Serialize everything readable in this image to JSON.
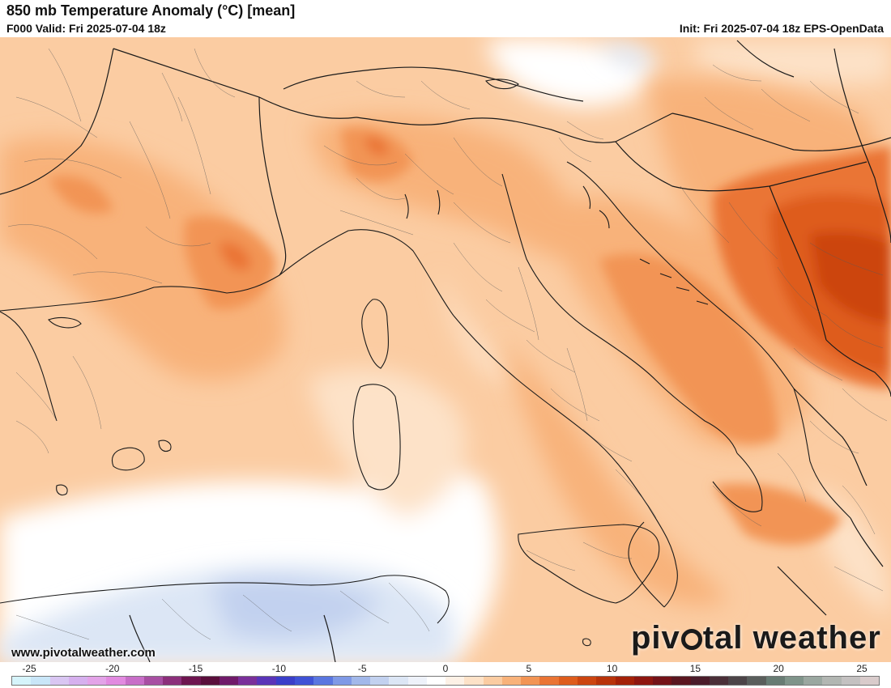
{
  "header": {
    "title": "850 mb Temperature Anomaly (°C) [mean]",
    "valid": "F000 Valid: Fri 2025-07-04 18z",
    "init": "Init: Fri 2025-07-04 18z EPS-OpenData"
  },
  "footer": {
    "website": "www.pivotalweather.com",
    "logo_left": "piv",
    "logo_right": "tal weather"
  },
  "colorbar": {
    "ticks": [
      "-25",
      "-20",
      "-15",
      "-10",
      "-5",
      "0",
      "5",
      "10",
      "15",
      "20",
      "25"
    ],
    "colors": [
      "#d6f4fb",
      "#c9e6f8",
      "#d9c6f2",
      "#d6b0ee",
      "#e3a3e8",
      "#e28ae0",
      "#c86ec8",
      "#a84fa3",
      "#8c2f7b",
      "#6e1550",
      "#5a0e3b",
      "#701a6a",
      "#7a2f9a",
      "#5a34b8",
      "#3a3ec9",
      "#3f52d6",
      "#5a76e0",
      "#7f99e6",
      "#a2b8ea",
      "#c2d1ef",
      "#dce6f5",
      "#eef2fa",
      "#ffffff",
      "#fdf1e6",
      "#fde2c8",
      "#fbcca2",
      "#f8b27a",
      "#f29454",
      "#ea7434",
      "#de5c1c",
      "#cc4510",
      "#b8330a",
      "#a42108",
      "#8e1610",
      "#741218",
      "#5a1620",
      "#4a1c2a",
      "#4a2f38",
      "#4c4448",
      "#5a5e5c",
      "#687c74",
      "#7f948a",
      "#9aa7a0",
      "#b2b6b2",
      "#c4c1c1",
      "#d9cbcb"
    ]
  },
  "map_layers": [
    "temperature-anomaly-shading",
    "country-borders",
    "province-borders",
    "coastlines"
  ]
}
